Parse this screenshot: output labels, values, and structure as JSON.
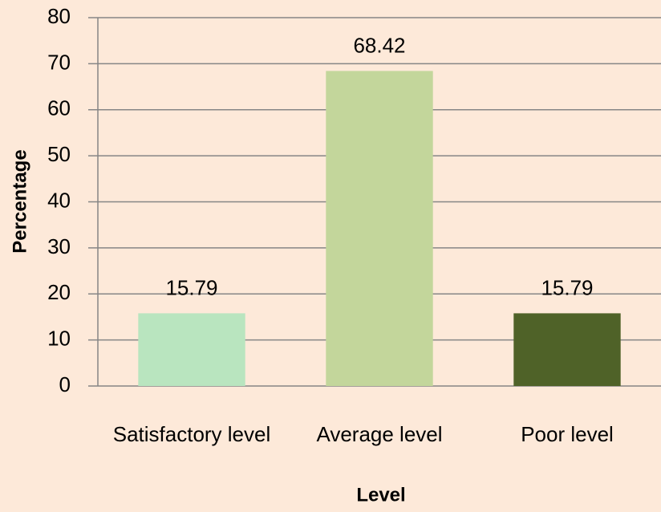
{
  "chart_data": {
    "type": "bar",
    "x_label": "Level",
    "y_label": "Percentage",
    "categories": [
      "Satisfactory level",
      "Average level",
      "Poor level"
    ],
    "values": [
      15.79,
      68.42,
      15.79
    ],
    "colors": [
      "#b9e5bf",
      "#c3d69b",
      "#4f6228"
    ],
    "ylim": [
      0,
      80
    ],
    "yticks": [
      0,
      10,
      20,
      30,
      40,
      50,
      60,
      70,
      80
    ],
    "grid": true
  }
}
